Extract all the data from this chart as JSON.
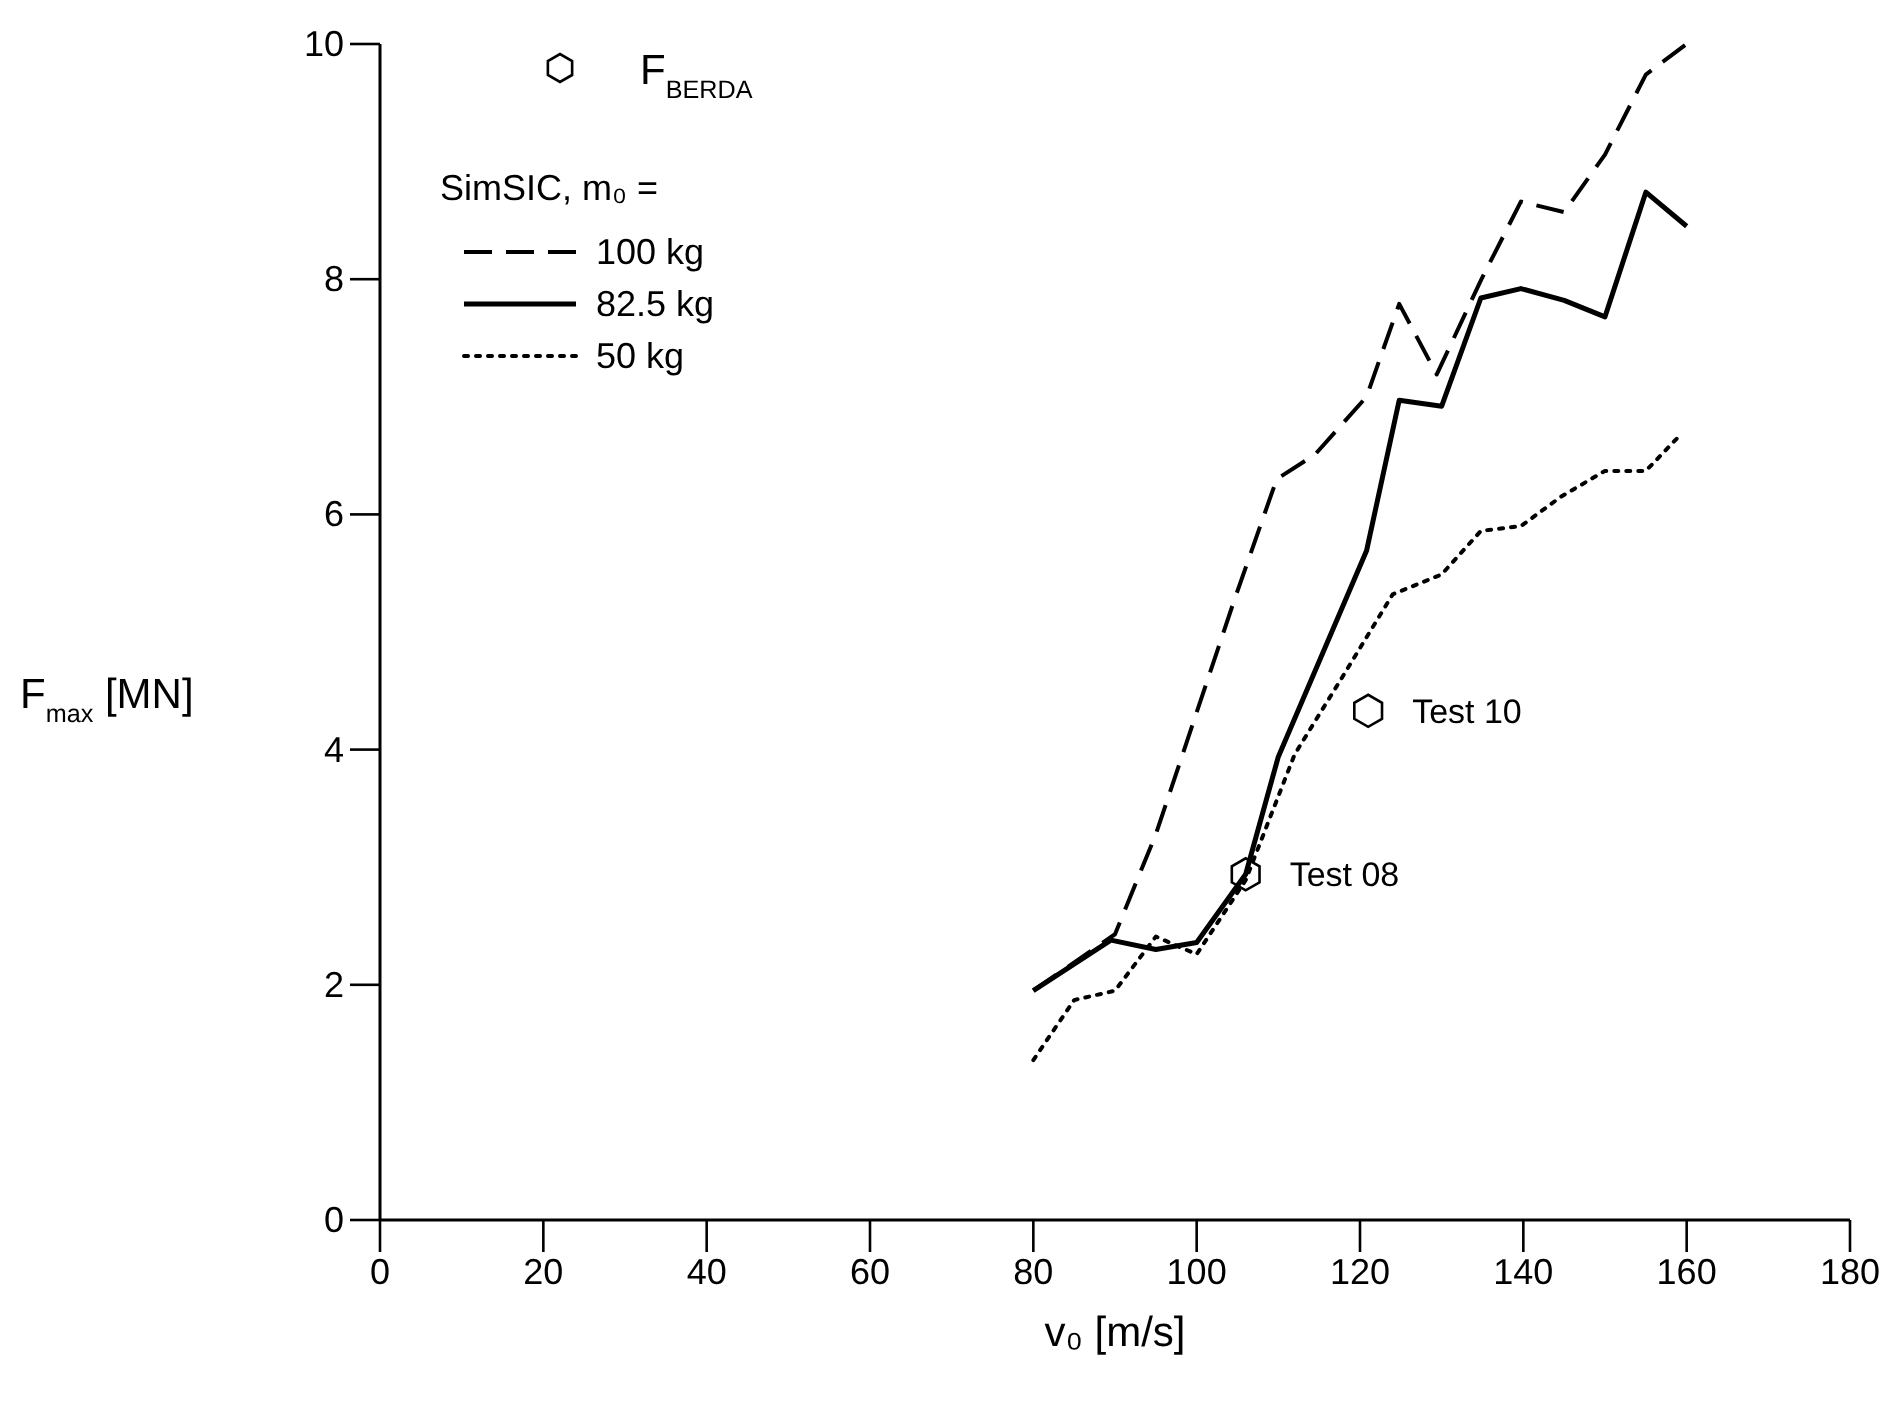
{
  "chart_data": {
    "type": "line",
    "xlabel": "v₀ [m/s]",
    "ylabel": "F$_{max}$ [MN]",
    "legend_title": "SimSIC, m₀ =",
    "xlim": [
      0,
      180
    ],
    "ylim": [
      0,
      10
    ],
    "xticks": [
      0,
      20,
      40,
      60,
      80,
      100,
      120,
      140,
      160,
      180
    ],
    "yticks": [
      0,
      2,
      4,
      6,
      8,
      10
    ],
    "grid": false,
    "legend": "top left",
    "series": [
      {
        "name": "F$_{BERDA}$",
        "type": "scatter",
        "color": "#000000",
        "x": [
          106,
          121
        ],
        "values": [
          2.94,
          4.33
        ]
      },
      {
        "name": "100 kg",
        "color": "#000000",
        "line_style": "dashed",
        "x": [
          80,
          90,
          95,
          104.6,
          109.8,
          114.5,
          120.8,
          124.8,
          129.4,
          134.8,
          139.7,
          145,
          150,
          155,
          160
        ],
        "values": [
          1.95,
          2.43,
          3.28,
          5.27,
          6.3,
          6.51,
          7.0,
          7.79,
          7.19,
          7.99,
          8.66,
          8.57,
          9.06,
          9.74,
          10.0
        ]
      },
      {
        "name": "82.5 kg",
        "color": "#000000",
        "line_style": "solid",
        "x": [
          80,
          89.5,
          95,
          100,
          106,
          110,
          120.8,
          124.8,
          130,
          134.8,
          139.7,
          145,
          150,
          155,
          160
        ],
        "values": [
          1.95,
          2.38,
          2.3,
          2.36,
          2.94,
          3.94,
          5.69,
          6.97,
          6.92,
          7.84,
          7.92,
          7.82,
          7.68,
          8.74,
          8.45
        ]
      },
      {
        "name": "50 kg",
        "color": "#000000",
        "line_style": "dotted",
        "x": [
          80,
          85,
          90,
          95,
          100,
          106,
          112,
          117.6,
          124,
          130,
          134.8,
          139.7,
          144.6,
          150,
          155,
          159
        ],
        "values": [
          1.36,
          1.87,
          1.95,
          2.41,
          2.26,
          2.89,
          3.96,
          4.59,
          5.32,
          5.49,
          5.86,
          5.9,
          6.15,
          6.37,
          6.37,
          6.66
        ]
      }
    ],
    "annotations": [
      {
        "text": "Test 08",
        "x": 106,
        "y": 2.94
      },
      {
        "text": "Test 10",
        "x": 121,
        "y": 4.33
      }
    ]
  }
}
